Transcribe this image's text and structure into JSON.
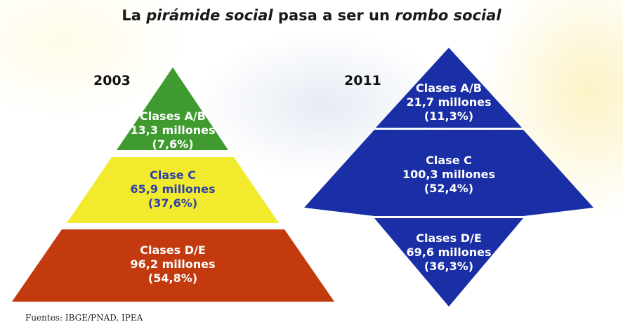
{
  "title": {
    "part1": "La ",
    "part2": "pirámide social",
    "part3": " pasa a ser un ",
    "part4": "rombo social"
  },
  "pyramid": {
    "year": "2003",
    "levels": [
      {
        "name": "Clases A/B",
        "amount": "13,3 millones",
        "pct": "(7,6%)",
        "color": "#3f9a2f",
        "text_color": "#ffffff"
      },
      {
        "name": "Clase C",
        "amount": "65,9 millones",
        "pct": "(37,6%)",
        "color": "#f2ea2c",
        "text_color": "#2f3fa8"
      },
      {
        "name": "Clases D/E",
        "amount": "96,2 millones",
        "pct": "(54,8%)",
        "color": "#c23a0e",
        "text_color": "#ffffff"
      }
    ]
  },
  "rhombus": {
    "year": "2011",
    "color": "#1a2fa6",
    "text_color": "#ffffff",
    "levels": [
      {
        "name": "Clases A/B",
        "amount": "21,7 millones",
        "pct": "(11,3%)"
      },
      {
        "name": "Clase C",
        "amount": "100,3 millones",
        "pct": "(52,4%)"
      },
      {
        "name": "Clases D/E",
        "amount": "69,6 millones",
        "pct": "(36,3%)"
      }
    ]
  },
  "source": "Fuentes: IBGE/PNAD, IPEA"
}
